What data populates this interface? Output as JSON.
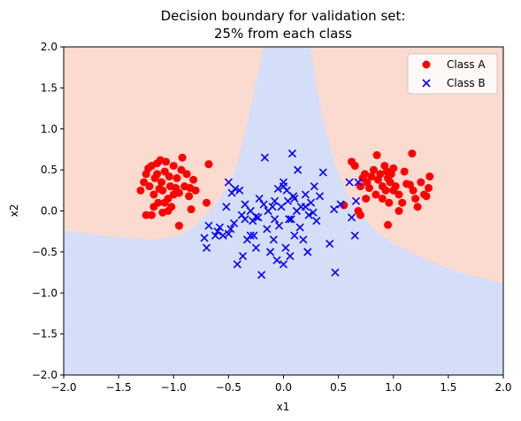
{
  "chart_data": {
    "type": "scatter",
    "title_lines": [
      "Decision boundary for validation set:",
      "25% from each class"
    ],
    "xlabel": "x1",
    "ylabel": "x2",
    "xlim": [
      -2.0,
      2.0
    ],
    "ylim": [
      -2.0,
      2.0
    ],
    "xticks": [
      -2.0,
      -1.5,
      -1.0,
      -0.5,
      0.0,
      0.5,
      1.0,
      1.5,
      2.0
    ],
    "yticks": [
      -2.0,
      -1.5,
      -1.0,
      -0.5,
      0.0,
      0.5,
      1.0,
      1.5,
      2.0
    ],
    "xtick_labels": [
      "−2.0",
      "−1.5",
      "−1.0",
      "−0.5",
      "0.0",
      "0.5",
      "1.0",
      "1.5",
      "2.0"
    ],
    "ytick_labels": [
      "−2.0",
      "−1.5",
      "−1.0",
      "−0.5",
      "0.0",
      "0.5",
      "1.0",
      "1.5",
      "2.0"
    ],
    "grid": false,
    "legend_position": "top-right",
    "colors": {
      "class_a": "#ff0000",
      "class_b": "#0000ff",
      "region_a": "#fbdacf",
      "region_b": "#d5def8"
    },
    "decision_boundary": {
      "region_a_label": "Class A",
      "region_b_label": "Class B",
      "left_boundary": [
        [
          -2.0,
          -0.24
        ],
        [
          -1.6,
          -0.31
        ],
        [
          -1.2,
          -0.35
        ],
        [
          -0.95,
          -0.3
        ],
        [
          -0.8,
          -0.17
        ],
        [
          -0.6,
          0.1
        ],
        [
          -0.45,
          0.45
        ],
        [
          -0.35,
          0.95
        ],
        [
          -0.25,
          1.55
        ],
        [
          -0.18,
          2.0
        ]
      ],
      "right_boundary": [
        [
          0.25,
          2.0
        ],
        [
          0.3,
          1.5
        ],
        [
          0.38,
          1.0
        ],
        [
          0.47,
          0.55
        ],
        [
          0.6,
          0.15
        ],
        [
          0.8,
          -0.2
        ],
        [
          1.0,
          -0.4
        ],
        [
          1.3,
          -0.6
        ],
        [
          1.6,
          -0.75
        ],
        [
          2.0,
          -0.88
        ]
      ]
    },
    "series": [
      {
        "name": "Class A",
        "marker": "o",
        "points": [
          [
            -1.3,
            0.25
          ],
          [
            -1.27,
            0.35
          ],
          [
            -1.25,
            0.45
          ],
          [
            -1.23,
            0.52
          ],
          [
            -1.22,
            0.3
          ],
          [
            -1.2,
            0.55
          ],
          [
            -1.18,
            0.2
          ],
          [
            -1.17,
            0.4
          ],
          [
            -1.15,
            0.58
          ],
          [
            -1.14,
            0.1
          ],
          [
            -1.12,
            0.62
          ],
          [
            -1.11,
            0.35
          ],
          [
            -1.1,
            0.25
          ],
          [
            -1.08,
            0.48
          ],
          [
            -1.07,
            0.6
          ],
          [
            -1.05,
            0.15
          ],
          [
            -1.04,
            0.42
          ],
          [
            -1.03,
            0.3
          ],
          [
            -1.02,
            0.05
          ],
          [
            -1.0,
            0.55
          ],
          [
            -0.98,
            0.28
          ],
          [
            -0.97,
            0.4
          ],
          [
            -0.95,
            0.22
          ],
          [
            -0.93,
            0.5
          ],
          [
            -0.92,
            0.65
          ],
          [
            -0.9,
            0.3
          ],
          [
            -0.88,
            0.45
          ],
          [
            -0.86,
            0.18
          ],
          [
            -0.84,
            0.02
          ],
          [
            -0.82,
            0.38
          ],
          [
            -0.8,
            0.25
          ],
          [
            -1.2,
            -0.05
          ],
          [
            -1.18,
            0.05
          ],
          [
            -1.1,
            -0.02
          ],
          [
            -1.25,
            -0.05
          ],
          [
            -1.08,
            0.1
          ],
          [
            -1.05,
            0.0
          ],
          [
            -0.95,
            -0.18
          ],
          [
            -0.85,
            0.28
          ],
          [
            -0.7,
            0.1
          ],
          [
            -0.68,
            0.57
          ],
          [
            -1.15,
            0.45
          ],
          [
            -1.0,
            0.2
          ],
          [
            -1.13,
            0.27
          ],
          [
            0.55,
            0.07
          ],
          [
            0.62,
            0.6
          ],
          [
            0.65,
            0.55
          ],
          [
            0.68,
            0.0
          ],
          [
            0.7,
            0.3
          ],
          [
            0.72,
            0.4
          ],
          [
            0.74,
            0.45
          ],
          [
            0.76,
            0.35
          ],
          [
            0.78,
            0.28
          ],
          [
            0.8,
            0.42
          ],
          [
            0.82,
            0.5
          ],
          [
            0.84,
            0.2
          ],
          [
            0.86,
            0.38
          ],
          [
            0.88,
            0.45
          ],
          [
            0.9,
            0.3
          ],
          [
            0.9,
            0.15
          ],
          [
            0.92,
            0.55
          ],
          [
            0.93,
            0.25
          ],
          [
            0.94,
            0.48
          ],
          [
            0.95,
            0.4
          ],
          [
            0.96,
            0.1
          ],
          [
            0.97,
            0.35
          ],
          [
            0.98,
            0.45
          ],
          [
            1.0,
            0.25
          ],
          [
            1.0,
            0.52
          ],
          [
            1.02,
            0.3
          ],
          [
            1.05,
            0.2
          ],
          [
            1.05,
            0.0
          ],
          [
            1.08,
            0.1
          ],
          [
            1.1,
            0.48
          ],
          [
            1.12,
            0.33
          ],
          [
            1.15,
            0.32
          ],
          [
            1.17,
            0.7
          ],
          [
            1.18,
            0.25
          ],
          [
            1.2,
            0.15
          ],
          [
            1.22,
            0.05
          ],
          [
            1.25,
            0.35
          ],
          [
            1.28,
            0.2
          ],
          [
            1.3,
            0.18
          ],
          [
            1.32,
            0.28
          ],
          [
            1.33,
            0.42
          ],
          [
            0.85,
            0.68
          ],
          [
            0.95,
            -0.17
          ],
          [
            0.75,
            0.15
          ],
          [
            0.7,
            -0.05
          ]
        ]
      },
      {
        "name": "Class B",
        "marker": "x",
        "points": [
          [
            -0.72,
            -0.33
          ],
          [
            -0.7,
            -0.45
          ],
          [
            -0.68,
            -0.18
          ],
          [
            -0.62,
            -0.3
          ],
          [
            -0.58,
            -0.2
          ],
          [
            -0.55,
            -0.3
          ],
          [
            -0.52,
            0.05
          ],
          [
            -0.5,
            -0.28
          ],
          [
            -0.5,
            0.35
          ],
          [
            -0.48,
            -0.22
          ],
          [
            -0.47,
            0.22
          ],
          [
            -0.45,
            -0.15
          ],
          [
            -0.44,
            0.27
          ],
          [
            -0.42,
            -0.65
          ],
          [
            -0.4,
            0.25
          ],
          [
            -0.38,
            -0.05
          ],
          [
            -0.37,
            -0.55
          ],
          [
            -0.35,
            -0.1
          ],
          [
            -0.33,
            -0.35
          ],
          [
            -0.3,
            0.0
          ],
          [
            -0.28,
            -0.12
          ],
          [
            -0.27,
            -0.3
          ],
          [
            -0.25,
            -0.45
          ],
          [
            -0.23,
            -0.08
          ],
          [
            -0.22,
            0.15
          ],
          [
            -0.2,
            -0.78
          ],
          [
            -0.18,
            0.08
          ],
          [
            -0.17,
            0.65
          ],
          [
            -0.15,
            -0.22
          ],
          [
            -0.14,
            0.0
          ],
          [
            -0.12,
            -0.5
          ],
          [
            -0.1,
            0.05
          ],
          [
            -0.09,
            -0.35
          ],
          [
            -0.08,
            -0.1
          ],
          [
            -0.06,
            -0.6
          ],
          [
            -0.05,
            0.27
          ],
          [
            -0.04,
            -0.18
          ],
          [
            -0.02,
            0.05
          ],
          [
            0.0,
            0.3
          ],
          [
            0.0,
            -0.65
          ],
          [
            0.02,
            -0.45
          ],
          [
            0.03,
            0.25
          ],
          [
            0.04,
            0.12
          ],
          [
            0.05,
            -0.1
          ],
          [
            0.06,
            -0.55
          ],
          [
            0.08,
            0.7
          ],
          [
            0.09,
            0.18
          ],
          [
            0.1,
            -0.3
          ],
          [
            0.12,
            0.0
          ],
          [
            0.13,
            0.5
          ],
          [
            0.15,
            -0.2
          ],
          [
            0.16,
            0.05
          ],
          [
            0.18,
            -0.35
          ],
          [
            0.2,
            0.2
          ],
          [
            0.22,
            -0.5
          ],
          [
            0.23,
            -0.05
          ],
          [
            0.25,
            0.1
          ],
          [
            0.27,
            -0.02
          ],
          [
            0.28,
            0.3
          ],
          [
            0.3,
            -0.12
          ],
          [
            0.33,
            0.18
          ],
          [
            0.36,
            0.47
          ],
          [
            0.42,
            -0.4
          ],
          [
            0.46,
            0.02
          ],
          [
            0.47,
            -0.75
          ],
          [
            0.52,
            0.08
          ],
          [
            0.6,
            0.35
          ],
          [
            0.62,
            -0.08
          ],
          [
            0.65,
            -0.3
          ],
          [
            0.66,
            0.12
          ],
          [
            0.68,
            0.35
          ],
          [
            -0.25,
            -0.07
          ],
          [
            0.0,
            0.35
          ],
          [
            -0.08,
            0.12
          ],
          [
            0.07,
            -0.1
          ],
          [
            -0.3,
            -0.3
          ],
          [
            -0.35,
            0.08
          ],
          [
            0.2,
            0.05
          ],
          [
            -0.6,
            -0.25
          ],
          [
            0.1,
            0.15
          ]
        ]
      }
    ]
  }
}
